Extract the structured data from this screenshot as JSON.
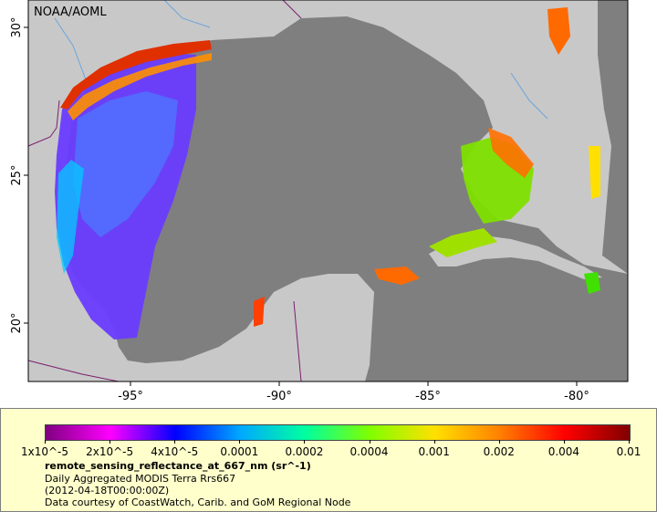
{
  "map": {
    "credit_label": "NOAA/AOML",
    "lon_ticks": [
      {
        "value": -95,
        "label": "-95°"
      },
      {
        "value": -90,
        "label": "-90°"
      },
      {
        "value": -85,
        "label": "-85°"
      },
      {
        "value": -80,
        "label": "-80°"
      }
    ],
    "lat_ticks": [
      {
        "value": 30,
        "label": "30°"
      },
      {
        "value": 25,
        "label": "25°"
      },
      {
        "value": 20,
        "label": "20°"
      }
    ],
    "colors": {
      "ocean_no_data": "#7f7f7f",
      "land": "#c8c8c8",
      "rivers": "#6aa5dc",
      "borders": "#7a1f6b"
    }
  },
  "legend": {
    "tick_labels": [
      "1x10^-5",
      "2x10^-5",
      "4x10^-5",
      "0.0001",
      "0.0002",
      "0.0004",
      "0.001",
      "0.002",
      "0.004",
      "0.01"
    ],
    "palette": [
      "#800080",
      "#ff00ff",
      "#0000ff",
      "#00a8ff",
      "#00ffa0",
      "#80ff00",
      "#ffe000",
      "#ff8000",
      "#ff0000",
      "#800000"
    ],
    "title": "remote_sensing_reflectance_at_667_nm (sr^-1)",
    "line1": "Daily Aggregated MODIS Terra Rrs667",
    "line2": "(2012-04-18T00:00:00Z)",
    "line3": "Data courtesy of CoastWatch, Carib. and GoM Regional Node"
  }
}
